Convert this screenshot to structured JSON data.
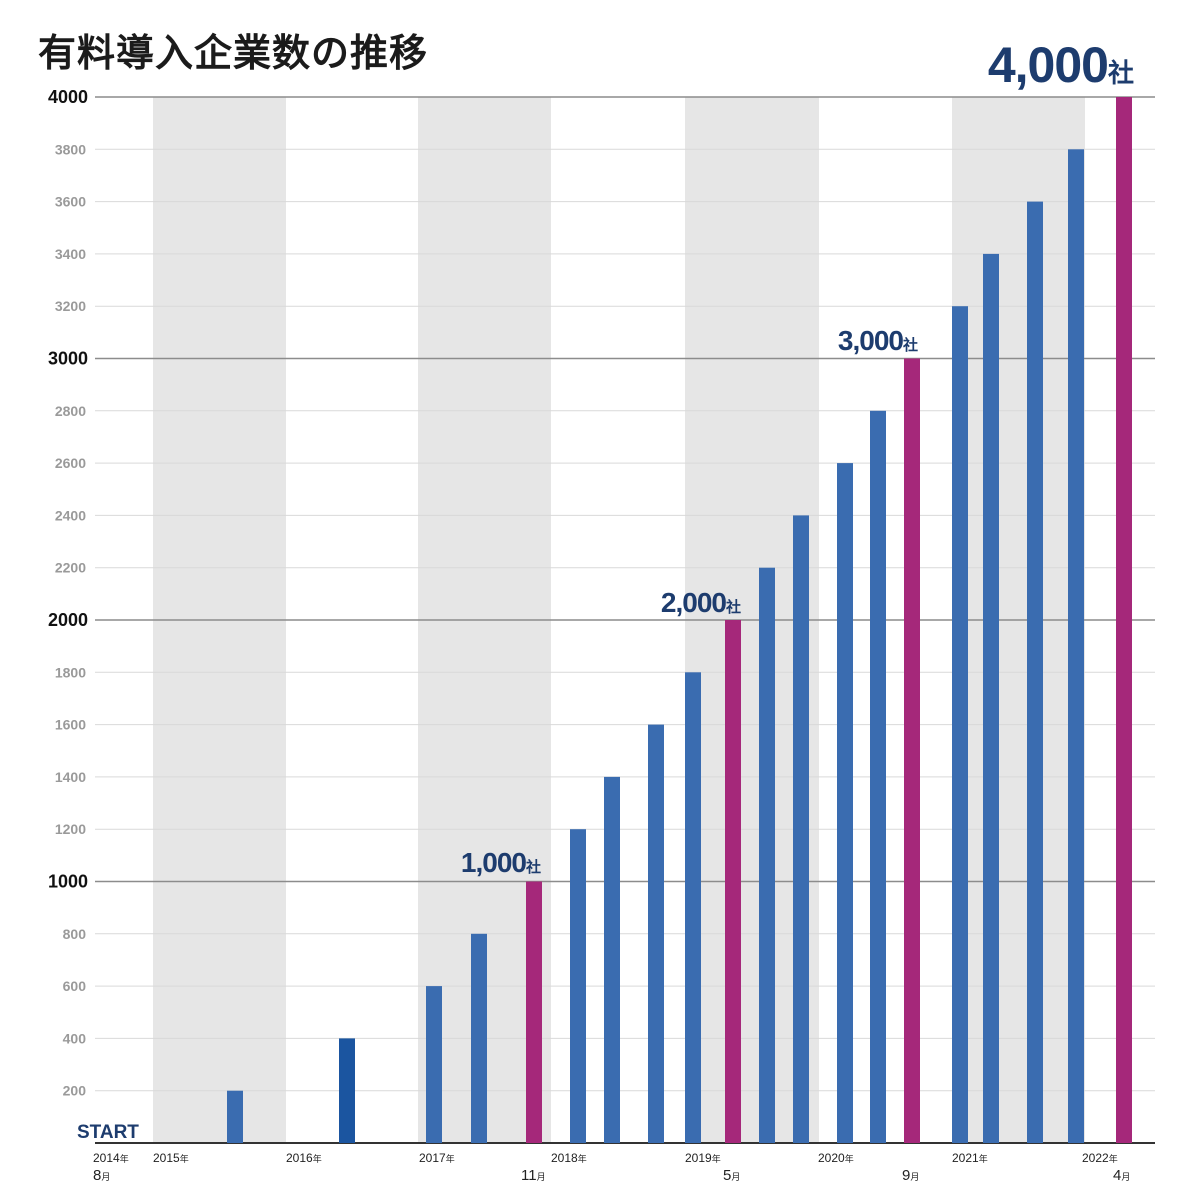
{
  "page_title": "有料導入企業数の推移",
  "chart_data": {
    "type": "bar",
    "title": "有料導入企業数の推移",
    "ylim": [
      0,
      4000
    ],
    "yticks": [
      200,
      400,
      600,
      800,
      1000,
      1200,
      1400,
      1600,
      1800,
      2000,
      2200,
      2400,
      2600,
      2800,
      3000,
      3200,
      3400,
      3600,
      3800,
      4000
    ],
    "major_yticks": [
      1000,
      2000,
      3000,
      4000
    ],
    "values": [
      200,
      400,
      600,
      800,
      1000,
      1200,
      1400,
      1600,
      1800,
      2000,
      2200,
      2400,
      2600,
      2800,
      3000,
      3200,
      3400,
      3600,
      3800,
      4000
    ],
    "milestones": [
      1000,
      2000,
      3000,
      4000
    ],
    "year_labels": [
      {
        "year": "2014",
        "suffix": "年"
      },
      {
        "year": "2015",
        "suffix": "年"
      },
      {
        "year": "2016",
        "suffix": "年"
      },
      {
        "year": "2017",
        "suffix": "年"
      },
      {
        "year": "2018",
        "suffix": "年"
      },
      {
        "year": "2019",
        "suffix": "年"
      },
      {
        "year": "2020",
        "suffix": "年"
      },
      {
        "year": "2021",
        "suffix": "年"
      },
      {
        "year": "2022",
        "suffix": "年"
      }
    ],
    "month_labels": [
      {
        "month": "8",
        "suffix": "月"
      },
      {
        "month": "11",
        "suffix": "月"
      },
      {
        "month": "5",
        "suffix": "月"
      },
      {
        "month": "9",
        "suffix": "月"
      },
      {
        "month": "4",
        "suffix": "月"
      }
    ],
    "annotations": [
      {
        "text": "1,000",
        "suffix": "社"
      },
      {
        "text": "2,000",
        "suffix": "社"
      },
      {
        "text": "3,000",
        "suffix": "社"
      },
      {
        "text": "4,000",
        "suffix": "社"
      }
    ],
    "start_label": "START",
    "grid": true,
    "colors": {
      "bar": "#3a6cb0",
      "bar_dark": "#1b55a0",
      "milestone": "#a5287a",
      "band": "#e6e6e6",
      "annotation": "#1d3c6e"
    }
  }
}
